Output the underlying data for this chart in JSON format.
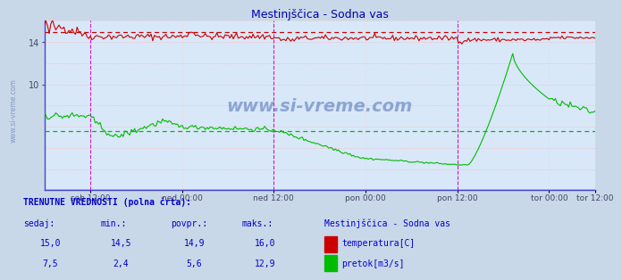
{
  "title": "Mestinjščica - Sodna vas",
  "fig_bg_color": "#c8d8e8",
  "plot_bg_color": "#d8e8f8",
  "x_ticks_labels": [
    "sob 12:00",
    "ned 00:00",
    "ned 12:00",
    "pon 00:00",
    "pon 12:00",
    "tor 00:00",
    "tor 12:00"
  ],
  "ylim_min": 0,
  "ylim_max": 16,
  "ytick_vals": [
    10,
    14
  ],
  "temp_color": "#cc0000",
  "flow_color": "#00bb00",
  "avg_temp_color": "#cc0000",
  "avg_flow_color": "#00bb00",
  "vline_color": "#cc00cc",
  "grid_h_color": "#ffaaaa",
  "grid_v_color": "#ffcccc",
  "spine_color": "#4444cc",
  "watermark": "www.si-vreme.com",
  "watermark_color": "#3355aa",
  "bottom_text_color": "#0000cc",
  "title_color": "#0000aa",
  "temp_avg": 14.9,
  "flow_avg": 5.6,
  "n_points": 336,
  "mag_vlines": [
    0.0833,
    0.4167,
    0.75
  ],
  "all_vlines": [
    0.0833,
    0.25,
    0.4167,
    0.5833,
    0.75,
    0.9167
  ],
  "x_tick_pos": [
    0.0833,
    0.25,
    0.4167,
    0.5833,
    0.75,
    0.9167,
    1.0
  ]
}
